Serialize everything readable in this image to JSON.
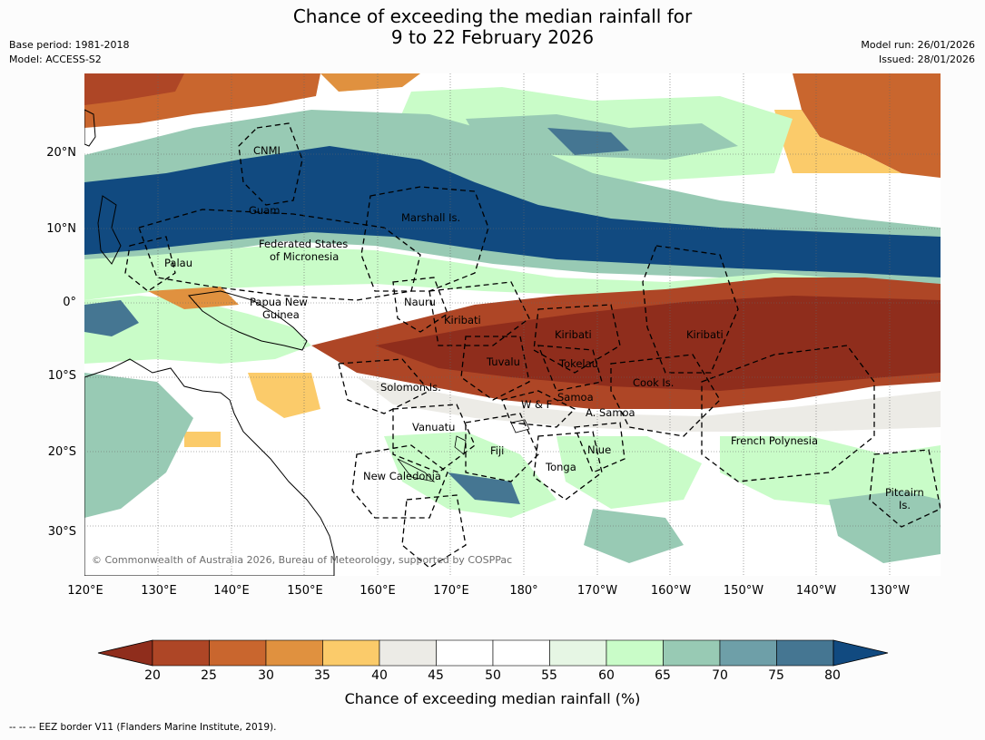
{
  "title_line1": "Chance of exceeding the median rainfall for",
  "title_line2": "9 to 22 February 2026",
  "base_period": "Base period: 1981-2018",
  "model": "Model: ACCESS-S2",
  "model_run": "Model run: 26/01/2026",
  "issued": "Issued: 28/01/2026",
  "lat_labels": [
    "20°N",
    "10°N",
    "0°",
    "10°S",
    "20°S",
    "30°S"
  ],
  "lon_labels": [
    "120°E",
    "130°E",
    "140°E",
    "150°E",
    "160°E",
    "170°E",
    "180°",
    "170°W",
    "160°W",
    "150°W",
    "140°W",
    "130°W"
  ],
  "places": {
    "cnmi": "CNMI",
    "guam": "Guam",
    "marshall": "Marshall Is.",
    "fsm1": "Federated States",
    "fsm2": "of Micronesia",
    "palau": "Palau",
    "png1": "Papua New",
    "png2": "Guinea",
    "nauru": "Nauru",
    "kiribati_w": "Kiribati",
    "kiribati_c": "Kiribati",
    "kiribati_e": "Kiribati",
    "tuvalu": "Tuvalu",
    "tokelau": "Tokelau",
    "cook": "Cook Is.",
    "solomon": "Solomon Is.",
    "wf": "W & F",
    "samoa": "Samoa",
    "asamoa": "A. Samoa",
    "vanuatu": "Vanuatu",
    "fiji": "Fiji",
    "niue": "Niue",
    "tonga": "Tonga",
    "newcal": "New Caledonia",
    "frpoly": "French Polynesia",
    "pitcairn1": "Pitcairn",
    "pitcairn2": "Is."
  },
  "copyright": "© Commonwealth of Australia 2026, Bureau of Meteorology, supported by COSPPac",
  "legend": {
    "title": "Chance of exceeding median rainfall (%)",
    "ticks": [
      "20",
      "25",
      "30",
      "35",
      "40",
      "45",
      "50",
      "55",
      "60",
      "65",
      "70",
      "75",
      "80"
    ],
    "under_color": "#8f2d1c",
    "over_color": "#114a80",
    "colors": [
      "#ae4626",
      "#c9662e",
      "#e0913f",
      "#fbcb6a",
      "#ecebe6",
      "#ffffff",
      "#ffffff",
      "#e6f6e4",
      "#c9fcc8",
      "#98cab4",
      "#6e9fa8",
      "#457692"
    ]
  },
  "eez_note": "--  --  -- EEZ border V11 (Flanders Marine Institute, 2019)."
}
